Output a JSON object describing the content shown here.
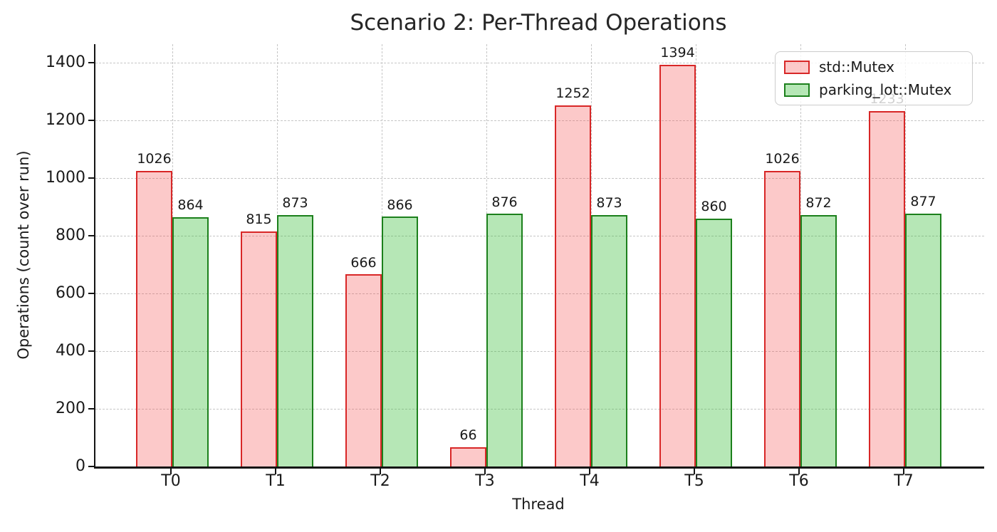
{
  "chart_data": {
    "type": "bar",
    "title": "Scenario 2: Per-Thread Operations",
    "xlabel": "Thread",
    "ylabel": "Operations (count over run)",
    "categories": [
      "T0",
      "T1",
      "T2",
      "T3",
      "T4",
      "T5",
      "T6",
      "T7"
    ],
    "series": [
      {
        "name": "std::Mutex",
        "values": [
          1026,
          815,
          666,
          66,
          1252,
          1394,
          1026,
          1233
        ],
        "fill": "rgba(245,60,60,0.28)",
        "edge": "#d82727"
      },
      {
        "name": "parking_lot::Mutex",
        "values": [
          864,
          873,
          866,
          876,
          873,
          860,
          872,
          877
        ],
        "fill": "rgba(45,185,45,0.35)",
        "edge": "#1c801c"
      }
    ],
    "yticks": [
      0,
      200,
      400,
      600,
      800,
      1000,
      1200,
      1400
    ],
    "ylim": [
      0,
      1465
    ],
    "grid": true,
    "grid_style": "dashed",
    "legend_position": "upper right",
    "bar_value_labels": true,
    "colors": {
      "axis": "#141414",
      "grid": "#c6c6c6",
      "text": "#1a1a1a",
      "background": "#ffffff"
    }
  }
}
